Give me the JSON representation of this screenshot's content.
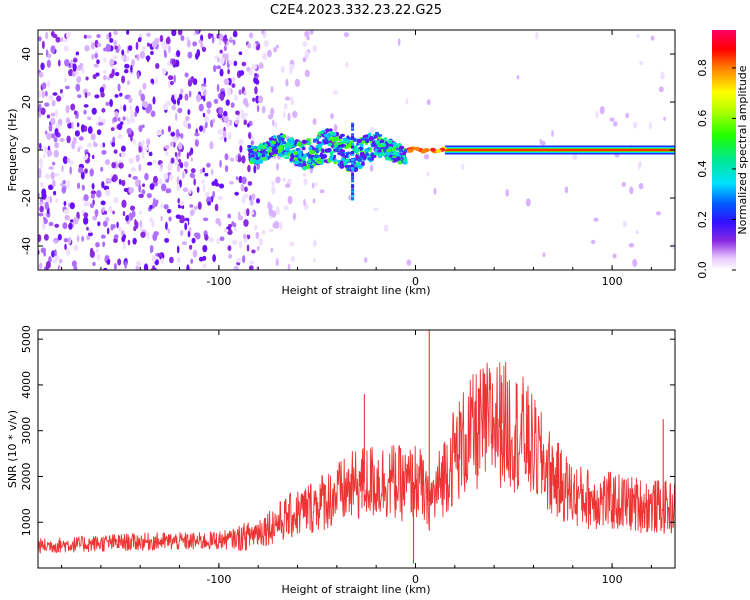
{
  "title": "C2E4.2023.332.23.22.G25",
  "colorbar": {
    "label": "Normalized spectral amplitude",
    "ticks": [
      "0.0",
      "0.2",
      "0.4",
      "0.6",
      "0.8"
    ],
    "tick_values": [
      0.0,
      0.2,
      0.4,
      0.6,
      0.8
    ],
    "range": [
      0,
      0.95
    ]
  },
  "chart_data": [
    {
      "type": "heatmap",
      "xlabel": "Height of straight line (km)",
      "ylabel": "Frequency (Hz)",
      "xlim": [
        -192,
        132
      ],
      "ylim": [
        -50,
        50
      ],
      "x_ticks": [
        -100,
        0,
        100
      ],
      "x_tick_labels": [
        "-100",
        "0",
        "100"
      ],
      "y_ticks": [
        -40,
        -20,
        0,
        20,
        40
      ],
      "y_tick_labels": [
        "-40",
        "-20",
        "0",
        "20",
        "40"
      ],
      "grid": false,
      "signal_band": {
        "center_frequency": 0,
        "strong_from_x": 15,
        "strong_to_x": 132,
        "broad_from_x": -85,
        "broad_to_x": -5,
        "spike_x": -32
      },
      "noise_region": {
        "from_x": -192,
        "to_x": -80
      }
    },
    {
      "type": "line",
      "xlabel": "Height of straight line (km)",
      "ylabel": "SNR (10 * v/v)",
      "xlim": [
        -192,
        132
      ],
      "ylim": [
        0,
        5200
      ],
      "x_ticks": [
        -100,
        0,
        100
      ],
      "x_tick_labels": [
        "-100",
        "0",
        "100"
      ],
      "y_ticks": [
        1000,
        2000,
        3000,
        4000,
        5000
      ],
      "y_tick_labels": [
        "1000",
        "2000",
        "3000",
        "4000",
        "5000"
      ],
      "grid": false,
      "series": [
        {
          "color": "#ee3333",
          "x": [
            -192,
            -170,
            -150,
            -130,
            -110,
            -95,
            -85,
            -75,
            -65,
            -55,
            -45,
            -35,
            -28,
            -20,
            -12,
            -5,
            0,
            3,
            6,
            10,
            15,
            20,
            25,
            30,
            35,
            40,
            45,
            50,
            55,
            60,
            65,
            70,
            75,
            80,
            90,
            100,
            110,
            120,
            132
          ],
          "values": [
            480,
            520,
            560,
            580,
            580,
            620,
            700,
            900,
            1100,
            1300,
            1500,
            1700,
            1850,
            1900,
            1900,
            1800,
            1900,
            1800,
            1400,
            1600,
            2100,
            2500,
            2750,
            2950,
            3100,
            3200,
            3150,
            3000,
            2900,
            2600,
            2300,
            2000,
            1800,
            1600,
            1500,
            1450,
            1400,
            1350,
            1300
          ],
          "spikes": [
            {
              "x": 7,
              "value": 5200
            },
            {
              "x": -26,
              "value": 3800
            },
            {
              "x": 44,
              "value": 4050
            },
            {
              "x": 126,
              "value": 3250
            },
            {
              "x": -1,
              "value": 100
            }
          ]
        }
      ]
    }
  ]
}
